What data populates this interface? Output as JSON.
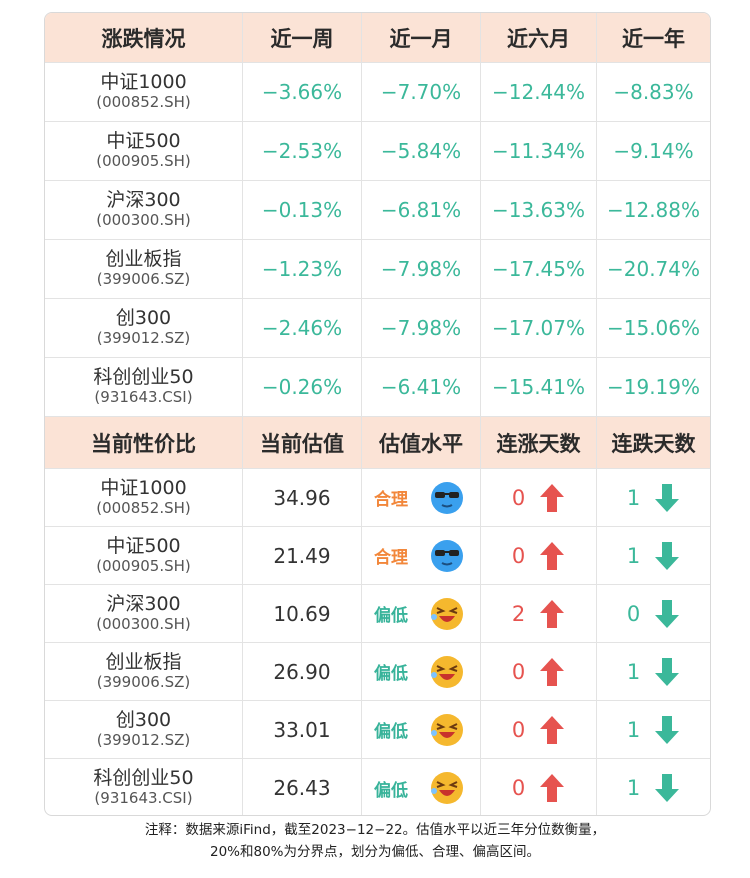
{
  "table1": {
    "headers": [
      "涨跌情况",
      "近一周",
      "近一月",
      "近六月",
      "近一年"
    ],
    "rows": [
      {
        "name": "中证1000",
        "code": "(000852.SH)",
        "values": [
          "−3.66%",
          "−7.70%",
          "−12.44%",
          "−8.83%"
        ]
      },
      {
        "name": "中证500",
        "code": "(000905.SH)",
        "values": [
          "−2.53%",
          "−5.84%",
          "−11.34%",
          "−9.14%"
        ]
      },
      {
        "name": "沪深300",
        "code": "(000300.SH)",
        "values": [
          "−0.13%",
          "−6.81%",
          "−13.63%",
          "−12.88%"
        ]
      },
      {
        "name": "创业板指",
        "code": "(399006.SZ)",
        "values": [
          "−1.23%",
          "−7.98%",
          "−17.45%",
          "−20.74%"
        ]
      },
      {
        "name": "创300",
        "code": "(399012.SZ)",
        "values": [
          "−2.46%",
          "−7.98%",
          "−17.07%",
          "−15.06%"
        ]
      },
      {
        "name": "科创创业50",
        "code": "(931643.CSI)",
        "values": [
          "−0.26%",
          "−6.41%",
          "−15.41%",
          "−19.19%"
        ]
      }
    ]
  },
  "table2": {
    "headers": [
      "当前性价比",
      "当前估值",
      "估值水平",
      "连涨天数",
      "连跌天数"
    ],
    "rows": [
      {
        "name": "中证1000",
        "code": "(000852.SH)",
        "valuation": "34.96",
        "level": "合理",
        "icon": "cool-face-icon",
        "up_days": "0",
        "down_days": "1"
      },
      {
        "name": "中证500",
        "code": "(000905.SH)",
        "valuation": "21.49",
        "level": "合理",
        "icon": "cool-face-icon",
        "up_days": "0",
        "down_days": "1"
      },
      {
        "name": "沪深300",
        "code": "(000300.SH)",
        "valuation": "10.69",
        "level": "偏低",
        "icon": "laughing-face-icon",
        "up_days": "2",
        "down_days": "0"
      },
      {
        "name": "创业板指",
        "code": "(399006.SZ)",
        "valuation": "26.90",
        "level": "偏低",
        "icon": "laughing-face-icon",
        "up_days": "0",
        "down_days": "1"
      },
      {
        "name": "创300",
        "code": "(399012.SZ)",
        "valuation": "33.01",
        "level": "偏低",
        "icon": "laughing-face-icon",
        "up_days": "0",
        "down_days": "1"
      },
      {
        "name": "科创创业50",
        "code": "(931643.CSI)",
        "valuation": "26.43",
        "level": "偏低",
        "icon": "laughing-face-icon",
        "up_days": "0",
        "down_days": "1"
      }
    ]
  },
  "note": {
    "line1": "注释：数据来源iFind，截至2023−12−22。估值水平以近三年分位数衡量，",
    "line2": "20%和80%为分界点，划分为偏低、合理、偏高区间。"
  },
  "colors": {
    "header_bg": "#fbe3d6",
    "negative": "#3bb89a",
    "up_arrow": "#e6534f",
    "down_arrow": "#3bb89a",
    "level_fair": "#f2873b",
    "level_low": "#38b39a"
  }
}
